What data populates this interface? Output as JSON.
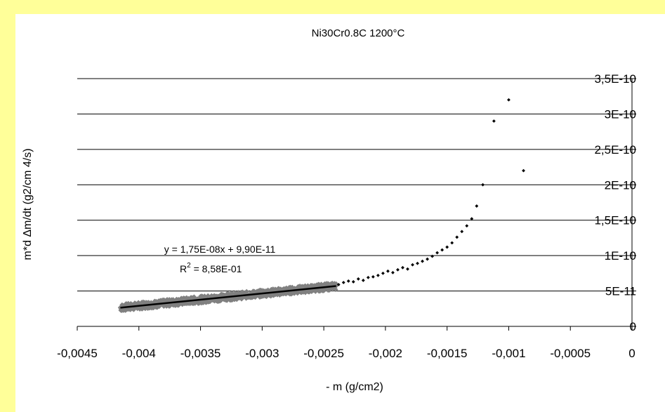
{
  "chart_data": {
    "type": "scatter",
    "title": "Ni30Cr0.8C 1200°C",
    "xlabel": "- m (g/cm2)",
    "ylabel": "m*d Δm/dt  (g2/cm 4/s)",
    "xlim": [
      -0.0045,
      0
    ],
    "ylim": [
      0,
      3.5e-10
    ],
    "x_ticks": [
      "-0,0045",
      "-0,004",
      "-0,0035",
      "-0,003",
      "-0,0025",
      "-0,002",
      "-0,0015",
      "-0,001",
      "-0,0005",
      "0"
    ],
    "y_ticks": [
      "0",
      "5E-11",
      "1E-10",
      "1,5E-10",
      "2E-10",
      "2,5E-10",
      "3E-10",
      "3,5E-10"
    ],
    "grid": "horizontal",
    "legend": "none",
    "colors": {
      "fitted_band": "#808080",
      "points": "#000000",
      "trendline": "#000000"
    },
    "fitted_band": {
      "x_range": [
        -0.00415,
        -0.0024
      ],
      "trend": {
        "slope": 1.75e-08,
        "intercept": 9.9e-11
      }
    },
    "series": [
      {
        "marker": "diamond",
        "x": [
          -0.00238,
          -0.00234,
          -0.0023,
          -0.00226,
          -0.00222,
          -0.00218,
          -0.00214,
          -0.0021,
          -0.00206,
          -0.00202,
          -0.00198,
          -0.00194,
          -0.0019,
          -0.00186,
          -0.00182,
          -0.00178,
          -0.00174,
          -0.0017,
          -0.00166,
          -0.00162,
          -0.00158,
          -0.00154,
          -0.0015,
          -0.00146,
          -0.00142,
          -0.00138,
          -0.00134,
          -0.0013,
          -0.00126,
          -0.00121,
          -0.00112,
          -0.001,
          -0.00088
        ],
        "y": [
          5.9e-11,
          6.2e-11,
          6.4e-11,
          6.3e-11,
          6.7e-11,
          6.5e-11,
          6.9e-11,
          7e-11,
          7.2e-11,
          7.5e-11,
          7.8e-11,
          7.6e-11,
          8e-11,
          8.3e-11,
          8.1e-11,
          8.7e-11,
          8.9e-11,
          9.2e-11,
          9.5e-11,
          9.9e-11,
          1.04e-10,
          1.08e-10,
          1.12e-10,
          1.18e-10,
          1.26e-10,
          1.34e-10,
          1.42e-10,
          1.52e-10,
          1.7e-10,
          2e-10,
          2.9e-10,
          3.2e-10,
          2.2e-10
        ]
      }
    ],
    "annotations": {
      "equation": "y = 1,75E-08x + 9,90E-11",
      "r2_prefix": "R",
      "r2_sup": "2",
      "r2_value": " = 8,58E-01"
    }
  }
}
